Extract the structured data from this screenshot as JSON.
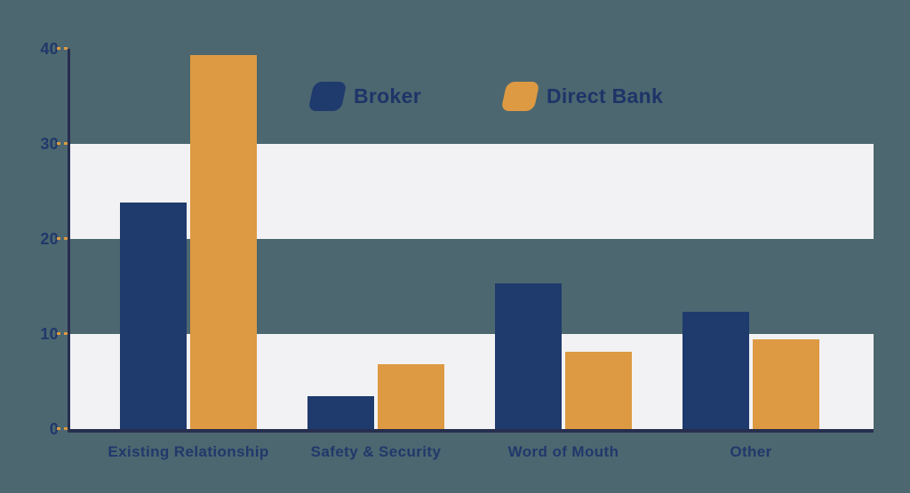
{
  "chart_data": {
    "type": "bar",
    "title": "",
    "xlabel": "",
    "ylabel": "",
    "categories": [
      "Existing Relationship",
      "Safety & Security",
      "Word of Mouth",
      "Other"
    ],
    "series": [
      {
        "name": "Broker",
        "color": "#1f3a6d",
        "values": [
          23.8,
          3.5,
          15.3,
          12.3
        ]
      },
      {
        "name": "Direct Bank",
        "color": "#dd9a42",
        "values": [
          39.3,
          6.8,
          8.1,
          9.4
        ]
      }
    ],
    "ylim": [
      0,
      40
    ],
    "yticks": [
      0,
      10,
      20,
      30,
      40
    ],
    "highlight_bands": [
      [
        0,
        10
      ],
      [
        20,
        30
      ]
    ],
    "grid": "alternating horizontal highlight bands",
    "legend_position": "top-center"
  },
  "colors": {
    "background": "#4c6770",
    "band": "#f2f2f4",
    "axis": "#272e4e",
    "tick": "#dd9a42",
    "label_text": "#21386b",
    "legend_text": "#1e3468",
    "broker": "#1f3a6d",
    "direct_bank": "#dd9a42"
  }
}
